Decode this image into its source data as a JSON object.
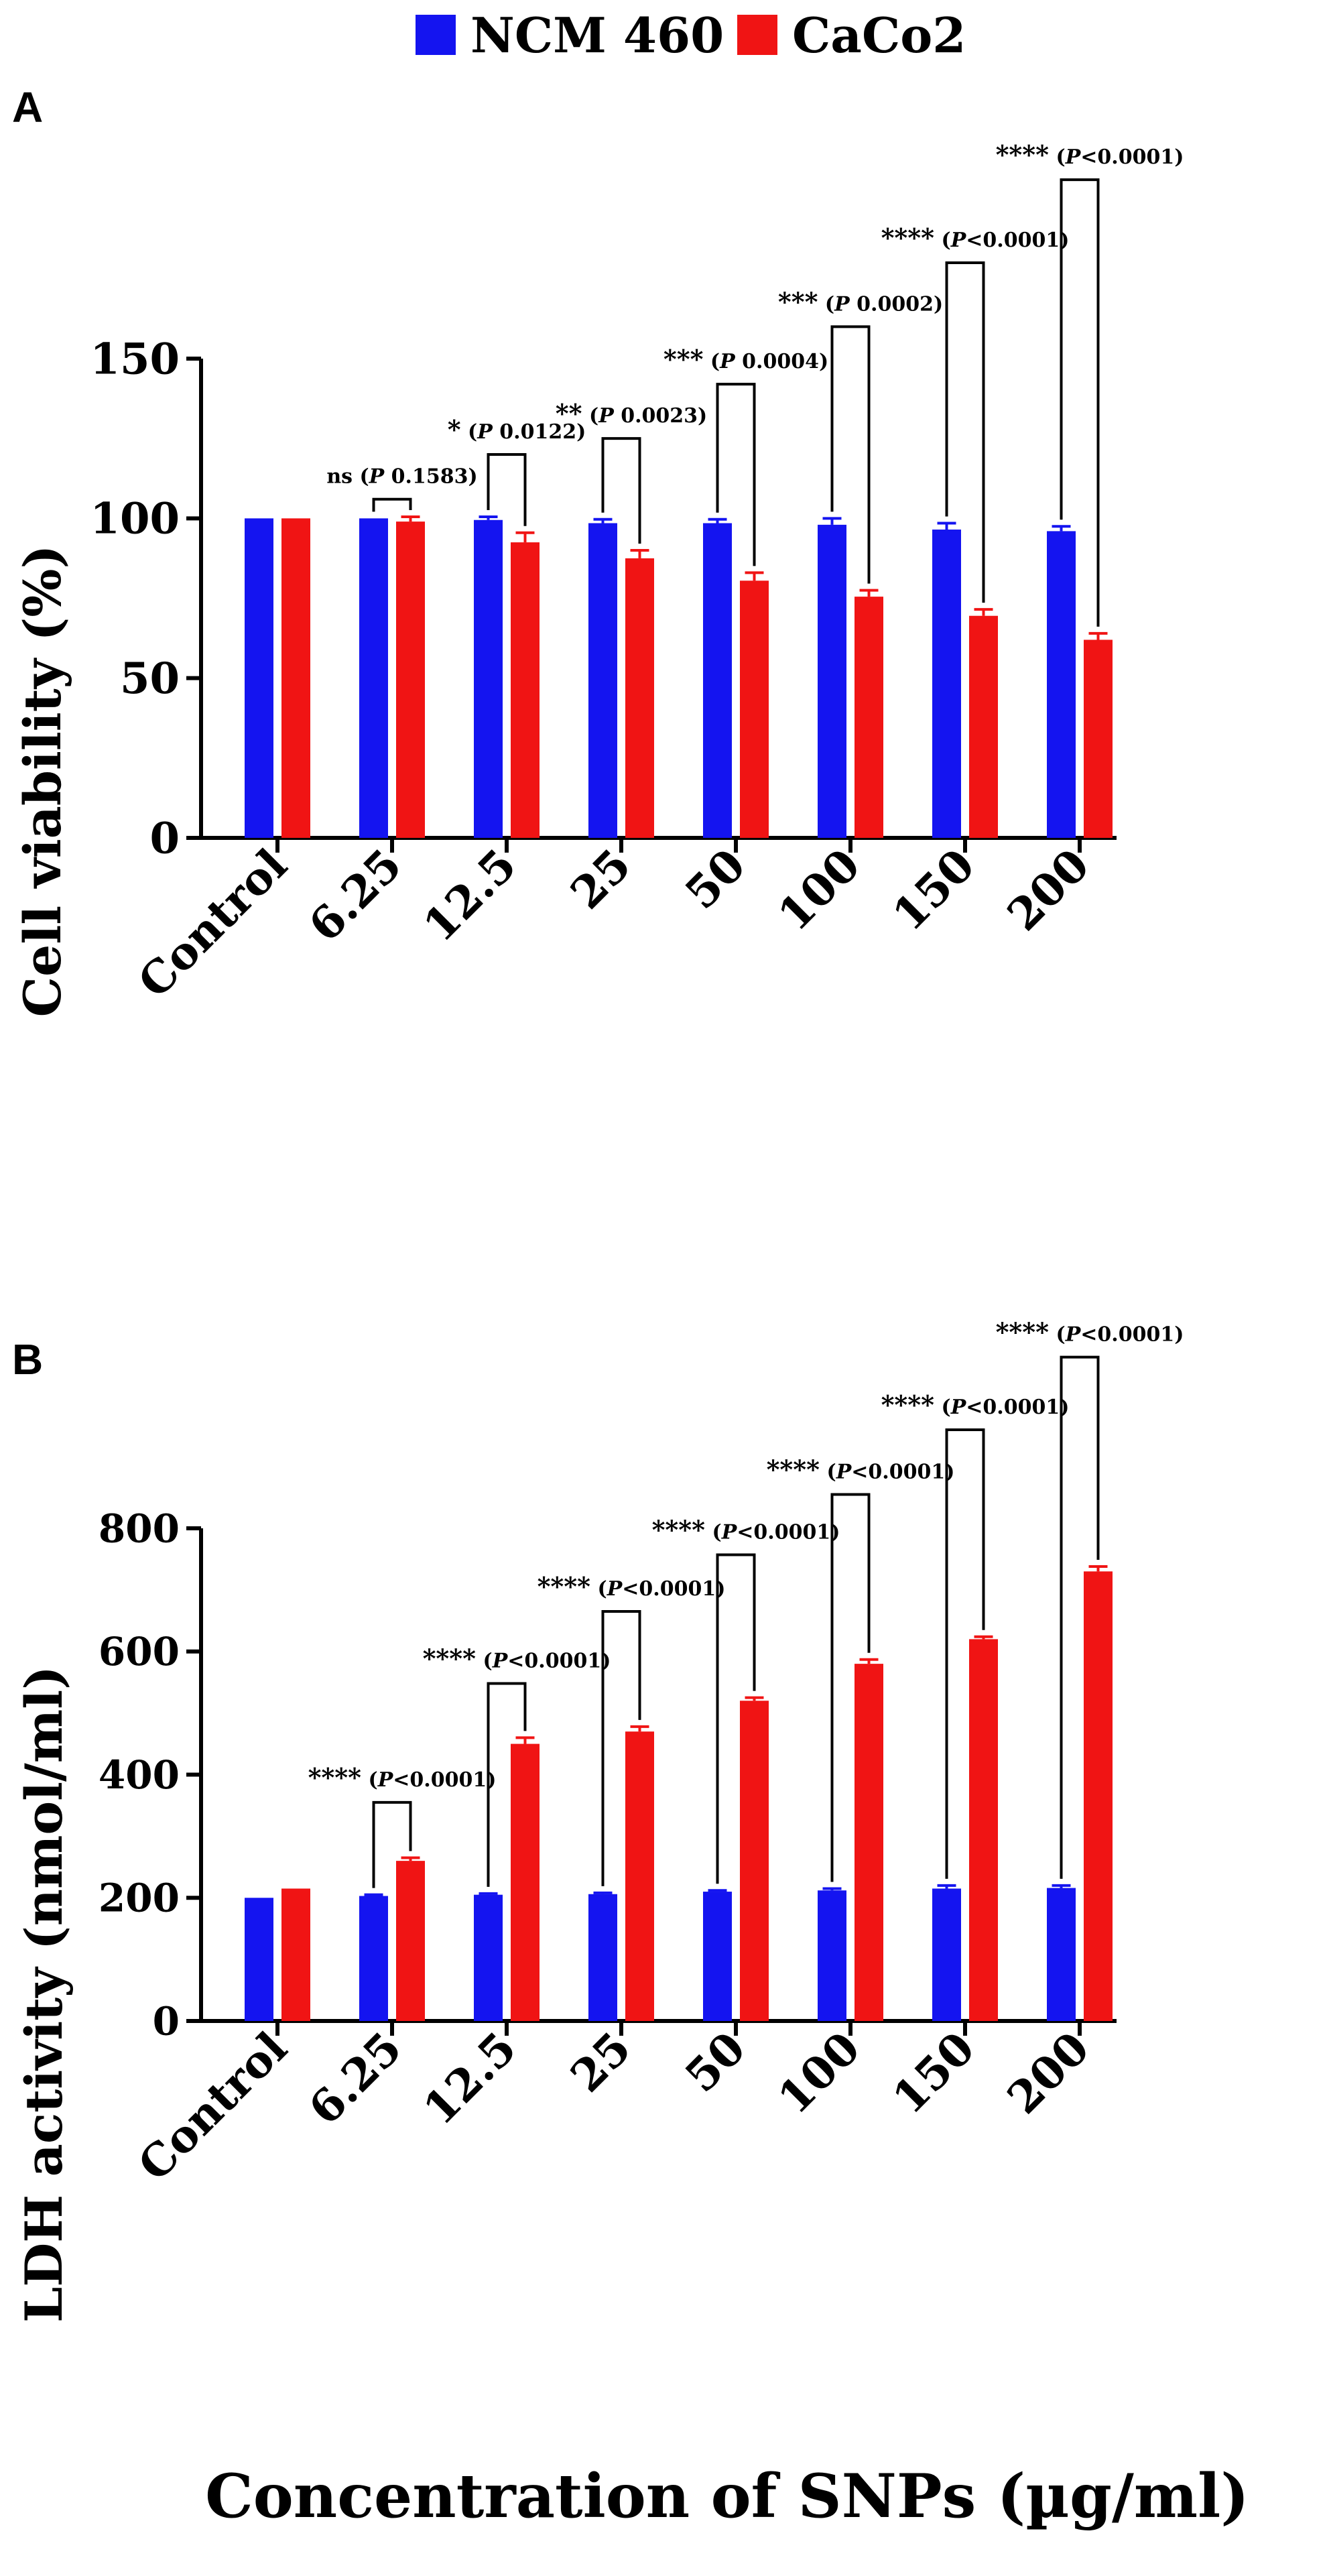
{
  "legend": {
    "entries": [
      {
        "label": "NCM 460",
        "color": "#1414f0"
      },
      {
        "label": "CaCo2",
        "color": "#f01414"
      }
    ]
  },
  "colors": {
    "series1": "#1414f0",
    "series2": "#f01414",
    "axis": "#000000"
  },
  "chart_data": [
    {
      "panel_label": "A",
      "type": "bar",
      "title": "",
      "xlabel": "",
      "ylabel": "Cell viability (%)",
      "ylim": [
        0,
        150
      ],
      "yticks": [
        0,
        50,
        100,
        150
      ],
      "grid": false,
      "legend_position": "top",
      "categories": [
        "Control",
        "6.25",
        "12.5",
        "25",
        "50",
        "100",
        "150",
        "200"
      ],
      "series": [
        {
          "name": "NCM 460",
          "values": [
            100,
            100,
            99.5,
            98.5,
            98.5,
            98,
            96.5,
            96
          ],
          "errors": [
            0,
            0,
            1,
            1.2,
            1.2,
            2,
            2,
            1.5
          ]
        },
        {
          "name": "CaCo2",
          "values": [
            100,
            99,
            92.5,
            87.5,
            80.5,
            75.5,
            69.5,
            62
          ],
          "errors": [
            0,
            1.5,
            3,
            2.5,
            2.5,
            2,
            2,
            2
          ]
        }
      ],
      "annotations": [
        {
          "category": "6.25",
          "stars": "ns",
          "p_prefix": "P",
          "p_text": " 0.1583",
          "bracket_top": 106
        },
        {
          "category": "12.5",
          "stars": "*",
          "p_prefix": "P",
          "p_text": " 0.0122",
          "bracket_top": 120
        },
        {
          "category": "25",
          "stars": "**",
          "p_prefix": "P",
          "p_text": " 0.0023",
          "bracket_top": 125
        },
        {
          "category": "50",
          "stars": "***",
          "p_prefix": "P",
          "p_text": " 0.0004",
          "bracket_top": 142
        },
        {
          "category": "100",
          "stars": "***",
          "p_prefix": "P",
          "p_text": " 0.0002",
          "bracket_top": 160
        },
        {
          "category": "150",
          "stars": "****",
          "p_prefix": "P",
          "p_text": "<0.0001",
          "bracket_top": 180
        },
        {
          "category": "200",
          "stars": "****",
          "p_prefix": "P",
          "p_text": "<0.0001",
          "bracket_top": 206
        }
      ]
    },
    {
      "panel_label": "B",
      "type": "bar",
      "title": "",
      "xlabel": "Concentration of SNPs (µg/ml)",
      "ylabel": "LDH activity (nmol/ml)",
      "ylim": [
        0,
        800
      ],
      "yticks": [
        0,
        200,
        400,
        600,
        800
      ],
      "grid": false,
      "legend_position": "top",
      "categories": [
        "Control",
        "6.25",
        "12.5",
        "25",
        "50",
        "100",
        "150",
        "200"
      ],
      "series": [
        {
          "name": "NCM 460",
          "values": [
            200,
            203,
            205,
            206,
            210,
            212,
            215,
            216
          ],
          "errors": [
            0,
            2,
            2,
            2,
            2,
            3,
            5,
            4
          ]
        },
        {
          "name": "CaCo2",
          "values": [
            215,
            260,
            450,
            470,
            520,
            580,
            620,
            730
          ],
          "errors": [
            0,
            5,
            10,
            8,
            5,
            7,
            4,
            8
          ]
        }
      ],
      "annotations": [
        {
          "category": "6.25",
          "stars": "****",
          "p_prefix": "P",
          "p_text": "<0.0001",
          "bracket_top": 355
        },
        {
          "category": "12.5",
          "stars": "****",
          "p_prefix": "P",
          "p_text": "<0.0001",
          "bracket_top": 548
        },
        {
          "category": "25",
          "stars": "****",
          "p_prefix": "P",
          "p_text": "<0.0001",
          "bracket_top": 665
        },
        {
          "category": "50",
          "stars": "****",
          "p_prefix": "P",
          "p_text": "<0.0001",
          "bracket_top": 757
        },
        {
          "category": "100",
          "stars": "****",
          "p_prefix": "P",
          "p_text": "<0.0001",
          "bracket_top": 855
        },
        {
          "category": "150",
          "stars": "****",
          "p_prefix": "P",
          "p_text": "<0.0001",
          "bracket_top": 960
        },
        {
          "category": "200",
          "stars": "****",
          "p_prefix": "P",
          "p_text": "<0.0001",
          "bracket_top": 1078
        }
      ]
    }
  ]
}
